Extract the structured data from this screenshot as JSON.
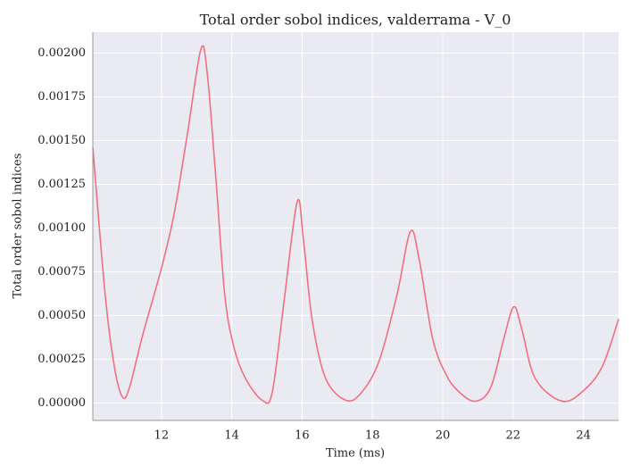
{
  "chart_data": {
    "type": "line",
    "title": "Total order sobol indices, valderrama - V_0",
    "xlabel": "Time (ms)",
    "ylabel": "Total order sobol indices",
    "x": [
      10.05,
      10.4,
      10.66,
      10.89,
      11.09,
      11.47,
      12.0,
      12.36,
      12.74,
      13.12,
      13.3,
      13.55,
      13.8,
      14.06,
      14.39,
      14.87,
      15.15,
      15.48,
      15.86,
      16.04,
      16.29,
      16.67,
      17.25,
      17.69,
      18.19,
      18.7,
      19.08,
      19.33,
      19.71,
      20.1,
      20.48,
      20.93,
      21.36,
      21.74,
      22.02,
      22.25,
      22.63,
      23.39,
      24.0,
      24.54,
      25.0
    ],
    "series": [
      {
        "color": "#f0707f",
        "values": [
          0.00146,
          0.00062,
          0.00021,
          3.5e-05,
          8.7e-05,
          0.00039,
          0.00077,
          0.00108,
          0.00154,
          0.00202,
          0.00189,
          0.00128,
          0.00062,
          0.00032,
          0.00014,
          1.5e-05,
          6e-05,
          0.00057,
          0.00115,
          0.00093,
          0.00047,
          0.00014,
          1.5e-05,
          6e-05,
          0.00024,
          0.00062,
          0.00098,
          0.00082,
          0.00037,
          0.00016,
          6e-05,
          1e-05,
          8.7e-05,
          0.00037,
          0.00055,
          0.00042,
          0.00014,
          1e-05,
          7e-05,
          0.00021,
          0.00048
        ]
      }
    ],
    "xlim": [
      10.05,
      25
    ],
    "xticks": [
      12,
      14,
      16,
      18,
      20,
      22,
      24
    ],
    "ylim": [
      -0.0001,
      0.00212
    ],
    "yticks": [
      {
        "value": 0,
        "label": "0.00000"
      },
      {
        "value": 0.00025,
        "label": "0.00025"
      },
      {
        "value": 0.0005,
        "label": "0.00050"
      },
      {
        "value": 0.00075,
        "label": "0.00075"
      },
      {
        "value": 0.001,
        "label": "0.00100"
      },
      {
        "value": 0.00125,
        "label": "0.00125"
      },
      {
        "value": 0.0015,
        "label": "0.00150"
      },
      {
        "value": 0.00175,
        "label": "0.00175"
      },
      {
        "value": 0.002,
        "label": "0.00200"
      }
    ],
    "grid": true
  }
}
